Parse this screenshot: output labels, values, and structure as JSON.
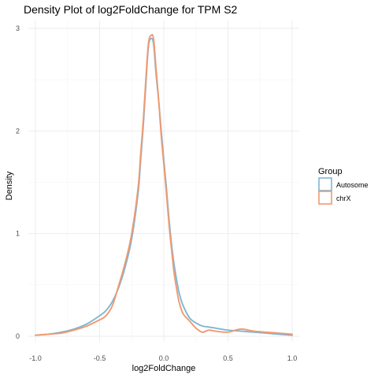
{
  "chart_data": {
    "type": "line",
    "title": "Density Plot of log2FoldChange for TPM S2",
    "xlabel": "log2FoldChange",
    "ylabel": "Density",
    "xlim": [
      -1.0,
      1.0
    ],
    "ylim": [
      0,
      3
    ],
    "x_ticks": [
      -1.0,
      -0.5,
      0.0,
      0.5,
      1.0
    ],
    "x_tick_labels": [
      "-1.0",
      "-0.5",
      "0.0",
      "0.5",
      "1.0"
    ],
    "y_ticks": [
      0,
      1,
      2,
      3
    ],
    "y_tick_labels": [
      "0",
      "1",
      "2",
      "3"
    ],
    "grid": true,
    "legend": {
      "title": "Group",
      "position": "right"
    },
    "series": [
      {
        "name": "Autosome",
        "color": "#7fb6d6",
        "x": [
          -1.0,
          -0.9,
          -0.8,
          -0.7,
          -0.6,
          -0.5,
          -0.45,
          -0.4,
          -0.35,
          -0.3,
          -0.25,
          -0.2,
          -0.18,
          -0.16,
          -0.14,
          -0.12,
          -0.1,
          -0.08,
          -0.06,
          -0.04,
          -0.02,
          0.0,
          0.02,
          0.04,
          0.06,
          0.08,
          0.1,
          0.12,
          0.15,
          0.2,
          0.25,
          0.3,
          0.35,
          0.4,
          0.5,
          0.6,
          0.7,
          0.8,
          0.9,
          1.0
        ],
        "y": [
          0.01,
          0.02,
          0.04,
          0.07,
          0.12,
          0.2,
          0.25,
          0.34,
          0.48,
          0.68,
          0.95,
          1.4,
          1.72,
          2.05,
          2.45,
          2.82,
          2.9,
          2.85,
          2.55,
          2.3,
          2.0,
          1.72,
          1.45,
          1.15,
          0.9,
          0.7,
          0.55,
          0.42,
          0.3,
          0.18,
          0.13,
          0.1,
          0.09,
          0.08,
          0.06,
          0.05,
          0.04,
          0.03,
          0.02,
          0.01
        ]
      },
      {
        "name": "chrX",
        "color": "#ef9a70",
        "x": [
          -1.0,
          -0.9,
          -0.8,
          -0.7,
          -0.6,
          -0.5,
          -0.45,
          -0.4,
          -0.35,
          -0.3,
          -0.25,
          -0.2,
          -0.18,
          -0.16,
          -0.14,
          -0.12,
          -0.1,
          -0.08,
          -0.06,
          -0.04,
          -0.02,
          0.0,
          0.02,
          0.04,
          0.06,
          0.08,
          0.1,
          0.12,
          0.15,
          0.2,
          0.25,
          0.3,
          0.35,
          0.4,
          0.5,
          0.6,
          0.7,
          0.8,
          0.9,
          1.0
        ],
        "y": [
          0.01,
          0.02,
          0.03,
          0.06,
          0.1,
          0.16,
          0.2,
          0.3,
          0.5,
          0.72,
          1.0,
          1.45,
          1.78,
          2.1,
          2.5,
          2.85,
          2.93,
          2.9,
          2.6,
          2.3,
          1.95,
          1.68,
          1.4,
          1.1,
          0.85,
          0.62,
          0.46,
          0.33,
          0.22,
          0.15,
          0.08,
          0.04,
          0.06,
          0.05,
          0.04,
          0.07,
          0.05,
          0.04,
          0.03,
          0.02
        ]
      }
    ]
  }
}
